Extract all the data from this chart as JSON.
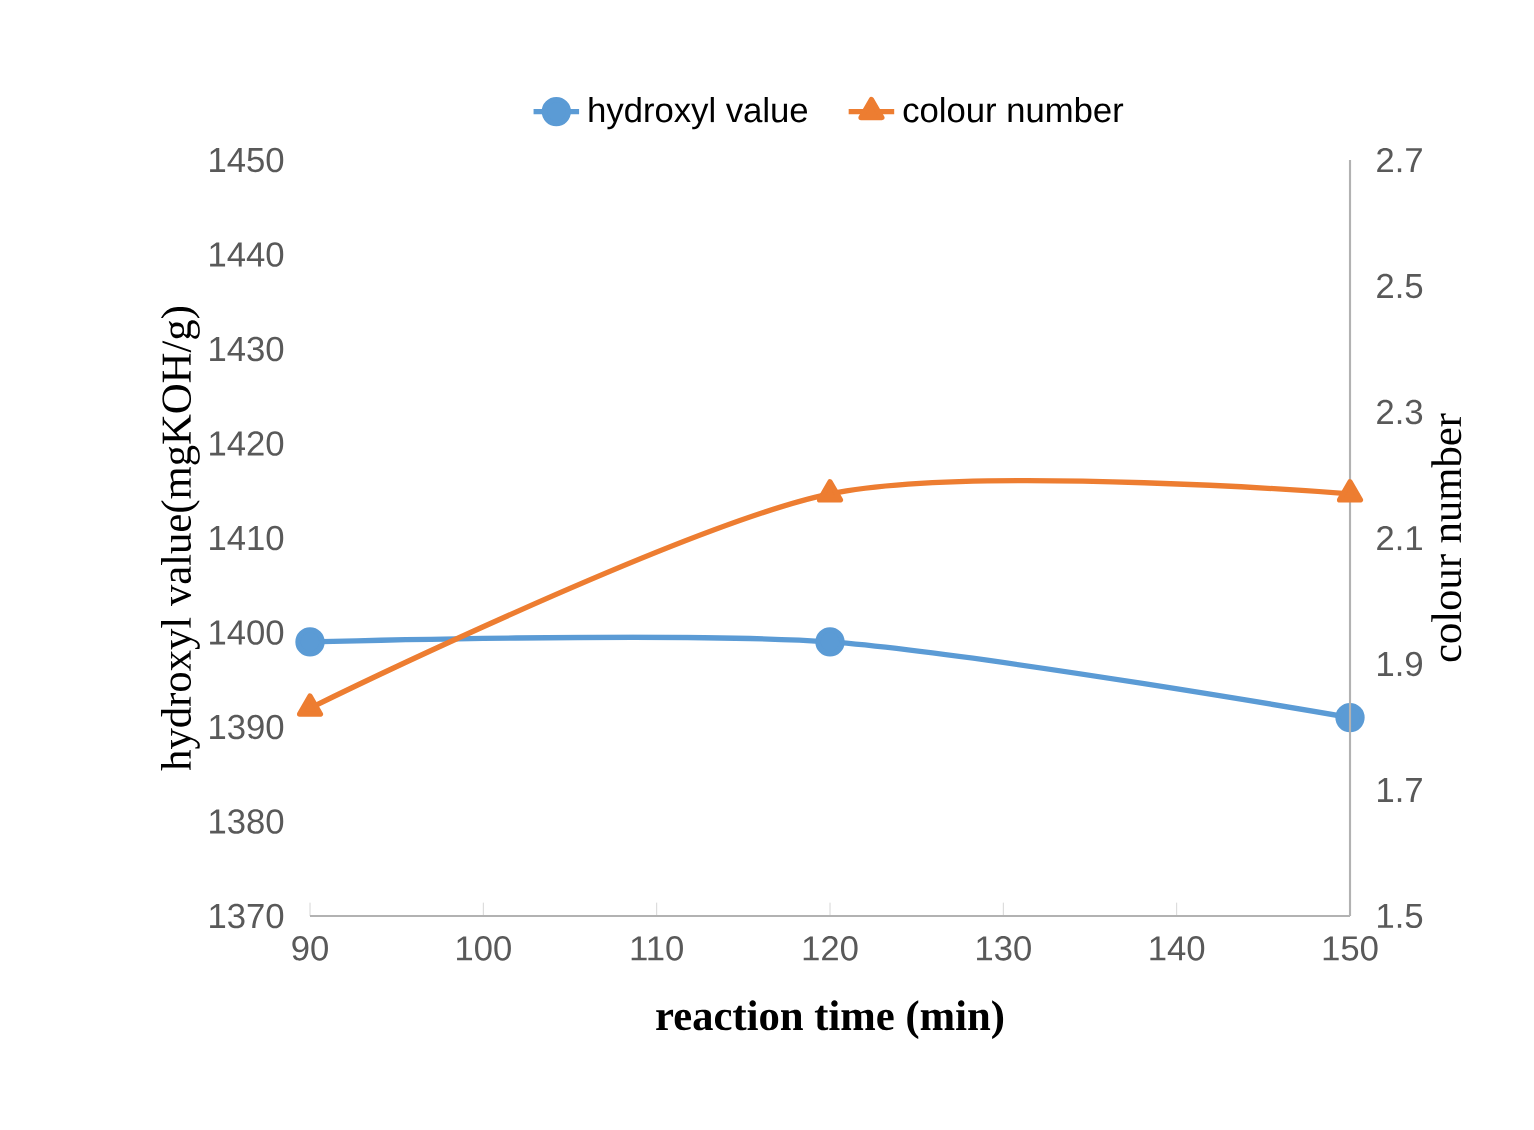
{
  "chart_data": {
    "type": "line",
    "xlabel": "reaction time (min)",
    "ylabel": "hydroxyl value(mgKOH/g)",
    "y2label": "colour number",
    "x": [
      90,
      120,
      150
    ],
    "series": [
      {
        "name": "hydroxyl value",
        "color": "#5b9bd5",
        "marker": "circle",
        "values": [
          1399,
          1399,
          1391
        ]
      },
      {
        "name": "colour number",
        "color": "#ed7d31",
        "marker": "triangle",
        "axis": "y2",
        "values": [
          1.83,
          2.17,
          2.17
        ]
      }
    ],
    "xlim": [
      90,
      150
    ],
    "xticks": [
      90,
      100,
      110,
      120,
      130,
      140,
      150
    ],
    "ylim": [
      1370,
      1450
    ],
    "yticks": [
      1370,
      1380,
      1390,
      1400,
      1410,
      1420,
      1430,
      1440,
      1450
    ],
    "y2lim": [
      1.5,
      2.7
    ],
    "y2ticks": [
      1.5,
      1.7,
      1.9,
      2.1,
      2.3,
      2.5,
      2.7
    ],
    "legend": "top",
    "grid": false
  }
}
